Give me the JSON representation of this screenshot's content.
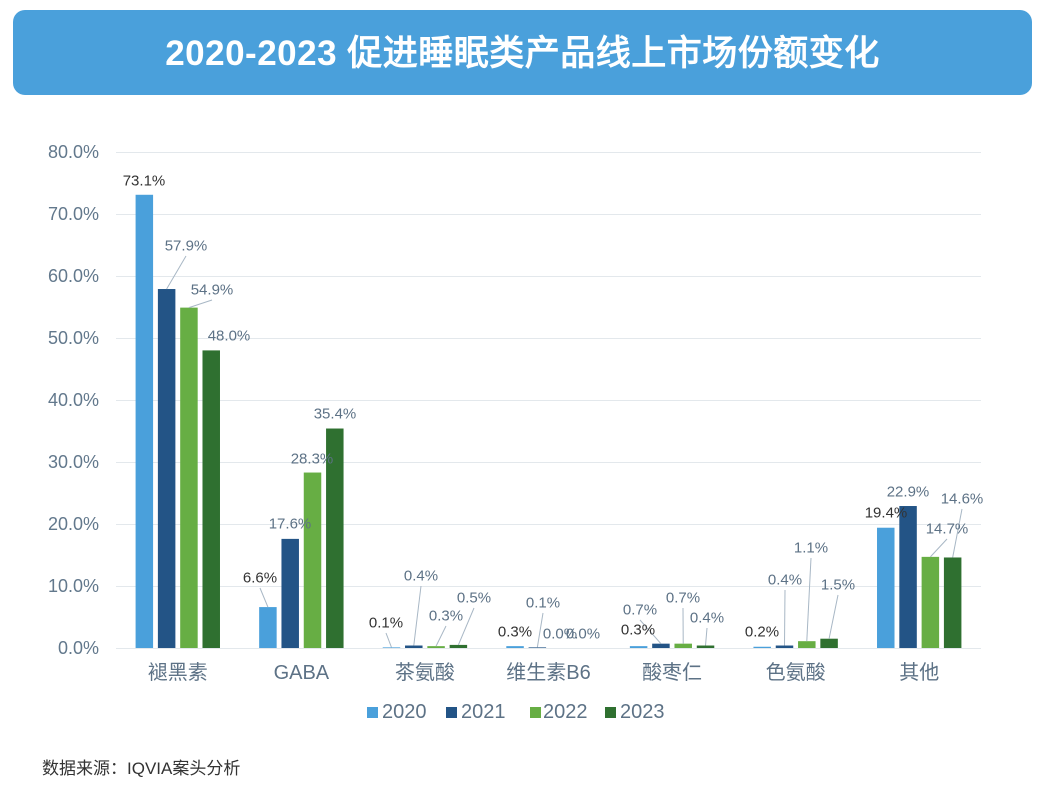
{
  "header": {
    "title": "2020-2023 促进睡眠类产品线上市场份额变化"
  },
  "chart_data": {
    "type": "bar",
    "title": "2020-2023 促进睡眠类产品线上市场份额变化",
    "xlabel": "",
    "ylabel": "",
    "unit": "%",
    "categories": [
      "褪黑素",
      "GABA",
      "茶氨酸",
      "维生素B6",
      "酸枣仁",
      "色氨酸",
      "其他"
    ],
    "ylim": [
      0,
      80
    ],
    "yticks": [
      0,
      10,
      20,
      30,
      40,
      50,
      60,
      70,
      80
    ],
    "ytick_labels": [
      "0.0%",
      "10.0%",
      "20.0%",
      "30.0%",
      "40.0%",
      "50.0%",
      "60.0%",
      "70.0%",
      "80.0%"
    ],
    "grid": true,
    "legend_position": "bottom",
    "series": [
      {
        "name": "2020",
        "color": "#4aa0db",
        "values": [
          73.1,
          6.6,
          0.1,
          0.3,
          0.3,
          0.2,
          19.4
        ],
        "labels": [
          "73.1%",
          "6.6%",
          "0.1%",
          "0.3%",
          "0.3%",
          "0.2%",
          "19.4%"
        ]
      },
      {
        "name": "2021",
        "color": "#235486",
        "values": [
          57.9,
          17.6,
          0.4,
          0.1,
          0.7,
          0.4,
          22.9
        ],
        "labels": [
          "57.9%",
          "17.6%",
          "0.4%",
          "0.1%",
          "0.7%",
          "0.4%",
          "22.9%"
        ]
      },
      {
        "name": "2022",
        "color": "#67ae44",
        "values": [
          54.9,
          28.3,
          0.3,
          0.0,
          0.7,
          1.1,
          14.7
        ],
        "labels": [
          "54.9%",
          "28.3%",
          "0.3%",
          "0.0%",
          "0.7%",
          "1.1%",
          "14.7%"
        ]
      },
      {
        "name": "2023",
        "color": "#2f7030",
        "values": [
          48.0,
          35.4,
          0.5,
          0.0,
          0.4,
          1.5,
          14.6
        ],
        "labels": [
          "48.0%",
          "35.4%",
          "0.5%",
          "0.0%",
          "0.4%",
          "1.5%",
          "14.6%"
        ]
      }
    ]
  },
  "footnote": "数据来源：IQVIA案头分析"
}
